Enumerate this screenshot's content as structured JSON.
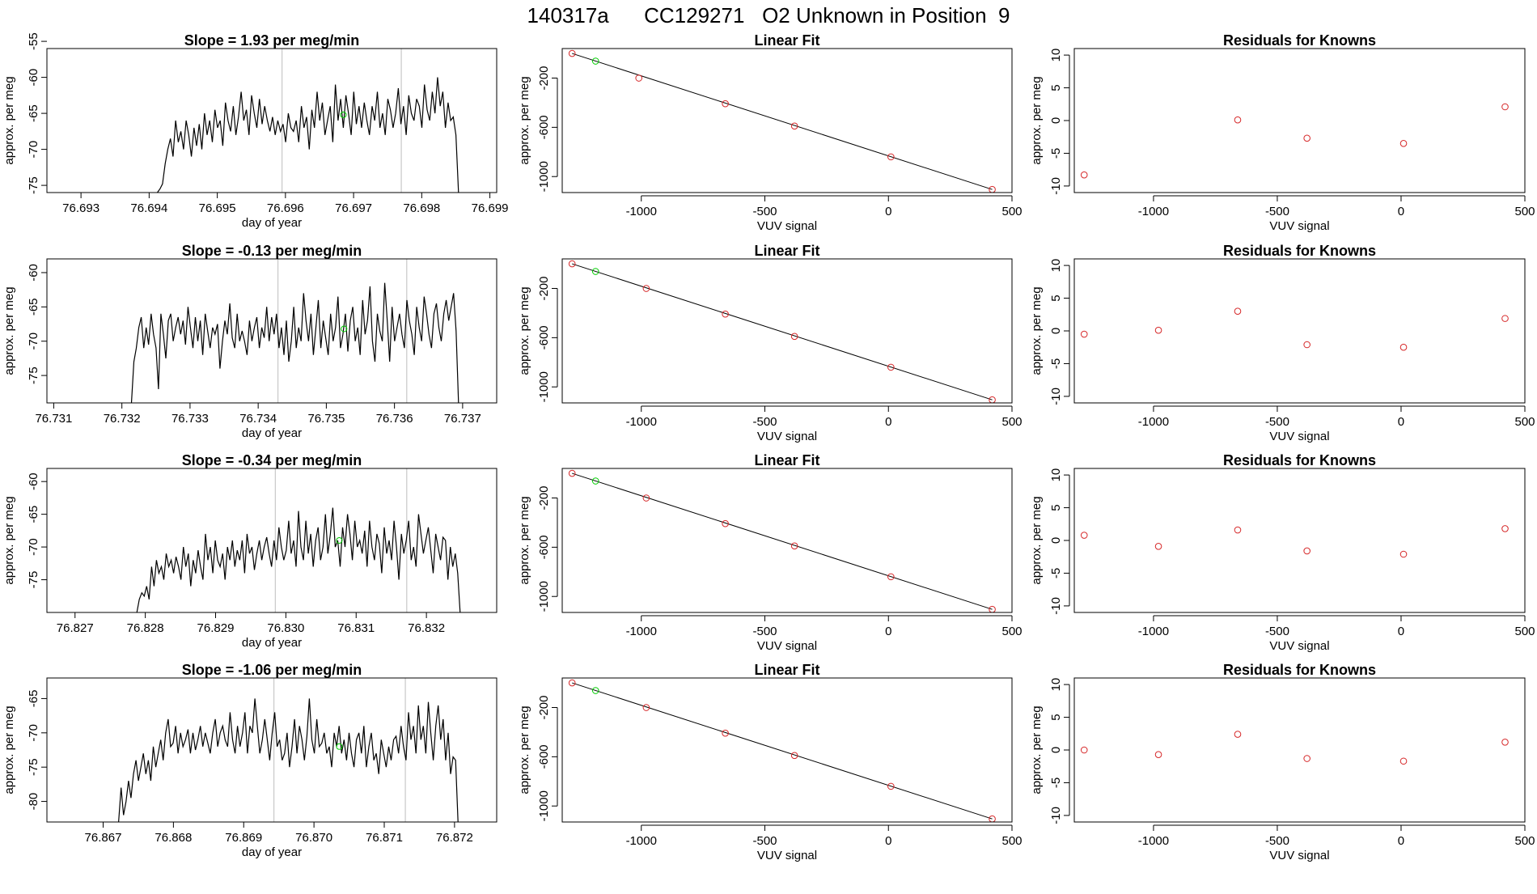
{
  "figure": {
    "title": "140317a      CC129271   O2 Unknown in Position  9"
  },
  "colors": {
    "trace": "#000000",
    "vline": "#c8c8c8",
    "known": "#d62728",
    "unknown": "#00cc00",
    "frame": "#000000"
  },
  "chart_data": [
    {
      "type": "line",
      "title": "Slope =  1.93  per meg/min",
      "xlabel": "day of year",
      "ylabel": "approx. per meg",
      "xlim": [
        76.6925,
        76.6991
      ],
      "ylim": [
        -76,
        -56
      ],
      "xticks": [
        "76.693",
        "76.694",
        "76.695",
        "76.696",
        "76.697",
        "76.698",
        "76.699"
      ],
      "yticks": [
        "-75",
        "-70",
        "-65",
        "-60",
        "-55"
      ],
      "vlines": [
        76.69595,
        76.6977
      ],
      "series": [
        {
          "x_start": 76.69412,
          "x_end": 76.69854,
          "y": [
            -76,
            -75.5,
            -74.8,
            -72,
            -70,
            -68.5,
            -71,
            -66,
            -69,
            -67.5,
            -70,
            -66,
            -68,
            -71,
            -67,
            -69.5,
            -66.5,
            -70,
            -65,
            -68,
            -66,
            -69,
            -64.5,
            -67,
            -66,
            -69.5,
            -63.5,
            -66,
            -67.5,
            -64,
            -68,
            -65.5,
            -62,
            -66,
            -64.5,
            -68,
            -62.5,
            -65,
            -67,
            -63,
            -66.5,
            -64,
            -66,
            -67.5,
            -65.5,
            -68,
            -66,
            -67.5,
            -66.5,
            -69,
            -65,
            -67,
            -67.5,
            -66,
            -69,
            -64,
            -67,
            -65.5,
            -70,
            -64.5,
            -67,
            -62,
            -66,
            -63.5,
            -68,
            -66,
            -64,
            -69,
            -61,
            -66,
            -63,
            -67,
            -62.5,
            -65,
            -68,
            -62,
            -66.5,
            -64,
            -67,
            -63.5,
            -66,
            -68,
            -64,
            -66,
            -62,
            -67,
            -65,
            -68,
            -63,
            -64.5,
            -67,
            -65,
            -61.5,
            -66.5,
            -64,
            -68,
            -62.5,
            -65,
            -66,
            -63,
            -64,
            -67,
            -61,
            -64.5,
            -66,
            -62,
            -65,
            -60,
            -64,
            -62,
            -67,
            -63.5,
            -66,
            -65.5,
            -68,
            -76
          ]
        }
      ],
      "markers": [
        {
          "x": 76.69685,
          "y": -65.2,
          "kind": "unknown"
        }
      ]
    },
    {
      "type": "scatter",
      "title": "Linear Fit",
      "xlabel": "VUV signal",
      "ylabel": "approx. per meg",
      "xlim": [
        -1320,
        500
      ],
      "ylim": [
        -1130,
        40
      ],
      "xticks": [
        "-1000",
        "-500",
        "0",
        "500"
      ],
      "yticks": [
        "-1000",
        "-600",
        "-200"
      ],
      "known": [
        [
          -1280,
          0
        ],
        [
          -1010,
          -200
        ],
        [
          -660,
          -408
        ],
        [
          -380,
          -590
        ],
        [
          10,
          -840
        ],
        [
          420,
          -1105
        ]
      ],
      "unknown": [
        [
          -1185,
          -62
        ]
      ],
      "fit": [
        [
          -1280,
          0
        ],
        [
          420,
          -1105
        ]
      ]
    },
    {
      "type": "scatter",
      "title": "Residuals for Knowns",
      "xlabel": "VUV signal",
      "ylabel": "approx. per meg",
      "xlim": [
        -1320,
        500
      ],
      "ylim": [
        -11,
        11
      ],
      "xticks": [
        "-1000",
        "-500",
        "0",
        "500"
      ],
      "yticks": [
        "-10",
        "-5",
        "0",
        "5",
        "10"
      ],
      "points": [
        [
          -1280,
          -8.3
        ],
        [
          -660,
          0.1
        ],
        [
          -380,
          -2.7
        ],
        [
          10,
          -3.5
        ],
        [
          420,
          2.1
        ]
      ]
    },
    {
      "type": "line",
      "title": "Slope =  -0.13  per meg/min",
      "xlabel": "day of year",
      "ylabel": "approx. per meg",
      "xlim": [
        76.7309,
        76.7375
      ],
      "ylim": [
        -79,
        -58
      ],
      "xticks": [
        "76.731",
        "76.732",
        "76.733",
        "76.734",
        "76.735",
        "76.736",
        "76.737"
      ],
      "yticks": [
        "-75",
        "-70",
        "-65",
        "-60"
      ],
      "vlines": [
        76.73429,
        76.73618
      ],
      "series": [
        {
          "x_start": 76.73214,
          "x_end": 76.73694,
          "y": [
            -79,
            -73,
            -71,
            -68,
            -66.5,
            -71,
            -68,
            -70.5,
            -66,
            -69,
            -71,
            -77,
            -66,
            -69,
            -72.5,
            -67,
            -66,
            -70,
            -68,
            -66.5,
            -69,
            -67,
            -70.5,
            -65,
            -68,
            -71,
            -66.5,
            -70,
            -67,
            -72,
            -66,
            -68.5,
            -71,
            -68,
            -69,
            -67.5,
            -74,
            -70,
            -67,
            -69,
            -64.5,
            -69.5,
            -71,
            -66,
            -70,
            -68.5,
            -70,
            -72,
            -67,
            -70,
            -68,
            -66.5,
            -71,
            -68,
            -69.5,
            -65,
            -70,
            -66.5,
            -69,
            -66,
            -71,
            -68,
            -72,
            -67,
            -73,
            -70,
            -65,
            -71,
            -68,
            -70,
            -63,
            -67,
            -70,
            -66,
            -72,
            -68,
            -64,
            -71,
            -67,
            -69.5,
            -72,
            -66,
            -70,
            -68,
            -63.5,
            -71,
            -69,
            -66,
            -71.5,
            -67,
            -65,
            -70,
            -68,
            -72,
            -64,
            -69,
            -67,
            -62,
            -70,
            -73,
            -66,
            -68.5,
            -70,
            -61.5,
            -67,
            -73,
            -65,
            -70,
            -68,
            -66,
            -69,
            -71,
            -64,
            -67,
            -69,
            -72,
            -65,
            -68,
            -70,
            -63.5,
            -66,
            -69,
            -71,
            -66,
            -64.5,
            -68,
            -70,
            -66,
            -64,
            -67,
            -65,
            -63,
            -68.5,
            -79
          ]
        }
      ],
      "markers": [
        {
          "x": 76.73526,
          "y": -68.2,
          "kind": "unknown"
        }
      ]
    },
    {
      "type": "scatter",
      "title": "Linear Fit",
      "xlabel": "VUV signal",
      "ylabel": "approx. per meg",
      "xlim": [
        -1320,
        500
      ],
      "ylim": [
        -1130,
        40
      ],
      "xticks": [
        "-1000",
        "-500",
        "0",
        "500"
      ],
      "yticks": [
        "-1000",
        "-600",
        "-200"
      ],
      "known": [
        [
          -1280,
          0
        ],
        [
          -980,
          -200
        ],
        [
          -660,
          -408
        ],
        [
          -380,
          -590
        ],
        [
          10,
          -840
        ],
        [
          420,
          -1105
        ]
      ],
      "unknown": [
        [
          -1185,
          -62
        ]
      ],
      "fit": [
        [
          -1280,
          0
        ],
        [
          420,
          -1105
        ]
      ]
    },
    {
      "type": "scatter",
      "title": "Residuals for Knowns",
      "xlabel": "VUV signal",
      "ylabel": "approx. per meg",
      "xlim": [
        -1320,
        500
      ],
      "ylim": [
        -11,
        11
      ],
      "xticks": [
        "-1000",
        "-500",
        "0",
        "500"
      ],
      "yticks": [
        "-10",
        "-5",
        "0",
        "5",
        "10"
      ],
      "points": [
        [
          -1280,
          -0.5
        ],
        [
          -980,
          0.1
        ],
        [
          -660,
          3.0
        ],
        [
          -380,
          -2.1
        ],
        [
          10,
          -2.5
        ],
        [
          420,
          1.9
        ]
      ]
    },
    {
      "type": "line",
      "title": "Slope =  -0.34  per meg/min",
      "xlabel": "day of year",
      "ylabel": "approx. per meg",
      "xlim": [
        76.8266,
        76.833
      ],
      "ylim": [
        -80,
        -58
      ],
      "xticks": [
        "76.827",
        "76.828",
        "76.829",
        "76.830",
        "76.831",
        "76.832"
      ],
      "yticks": [
        "-75",
        "-70",
        "-65",
        "-60"
      ],
      "vlines": [
        76.82985,
        76.83172
      ],
      "series": [
        {
          "x_start": 76.82788,
          "x_end": 76.83248,
          "y": [
            -80,
            -78,
            -77,
            -77.5,
            -76,
            -78,
            -73,
            -76,
            -72,
            -74,
            -73,
            -75,
            -71,
            -73,
            -72,
            -74,
            -71.5,
            -73,
            -75,
            -70,
            -73,
            -71,
            -76,
            -72,
            -74,
            -70.5,
            -73,
            -75,
            -68,
            -72,
            -70,
            -74,
            -69,
            -72,
            -73,
            -71,
            -75,
            -70,
            -72,
            -69,
            -73,
            -70.5,
            -72,
            -69,
            -74,
            -68,
            -71,
            -70,
            -73.5,
            -71,
            -69,
            -72,
            -70,
            -68.5,
            -71,
            -73,
            -69,
            -72,
            -67,
            -70,
            -72,
            -70.5,
            -66,
            -71,
            -69,
            -73,
            -64.5,
            -70,
            -72,
            -66,
            -71,
            -68,
            -73,
            -69,
            -67,
            -72,
            -70,
            -65,
            -71,
            -68,
            -64,
            -70,
            -69,
            -73,
            -67,
            -70,
            -65,
            -68,
            -72,
            -66,
            -70,
            -69,
            -71,
            -67.5,
            -73,
            -66,
            -70,
            -72,
            -68,
            -69.5,
            -74,
            -67,
            -71,
            -69,
            -72,
            -66,
            -70,
            -75,
            -68,
            -71,
            -69,
            -66,
            -72,
            -70,
            -73,
            -65,
            -68,
            -71,
            -69,
            -67,
            -70.5,
            -74,
            -68,
            -70,
            -72,
            -68.5,
            -69,
            -75,
            -70,
            -73,
            -71,
            -74,
            -80
          ]
        }
      ],
      "markers": [
        {
          "x": 76.83076,
          "y": -69.0,
          "kind": "unknown"
        }
      ]
    },
    {
      "type": "scatter",
      "title": "Linear Fit",
      "xlabel": "VUV signal",
      "ylabel": "approx. per meg",
      "xlim": [
        -1320,
        500
      ],
      "ylim": [
        -1130,
        40
      ],
      "xticks": [
        "-1000",
        "-500",
        "0",
        "500"
      ],
      "yticks": [
        "-1000",
        "-600",
        "-200"
      ],
      "known": [
        [
          -1280,
          0
        ],
        [
          -980,
          -200
        ],
        [
          -660,
          -408
        ],
        [
          -380,
          -590
        ],
        [
          10,
          -840
        ],
        [
          420,
          -1105
        ]
      ],
      "unknown": [
        [
          -1185,
          -62
        ]
      ],
      "fit": [
        [
          -1280,
          0
        ],
        [
          420,
          -1105
        ]
      ]
    },
    {
      "type": "scatter",
      "title": "Residuals for Knowns",
      "xlabel": "VUV signal",
      "ylabel": "approx. per meg",
      "xlim": [
        -1320,
        500
      ],
      "ylim": [
        -11,
        11
      ],
      "xticks": [
        "-1000",
        "-500",
        "0",
        "500"
      ],
      "yticks": [
        "-10",
        "-5",
        "0",
        "5",
        "10"
      ],
      "points": [
        [
          -1280,
          0.8
        ],
        [
          -980,
          -0.9
        ],
        [
          -660,
          1.6
        ],
        [
          -380,
          -1.6
        ],
        [
          10,
          -2.1
        ],
        [
          420,
          1.8
        ]
      ]
    },
    {
      "type": "line",
      "title": "Slope =  -1.06  per meg/min",
      "xlabel": "day of year",
      "ylabel": "approx. per meg",
      "xlim": [
        76.8662,
        76.8726
      ],
      "ylim": [
        -83,
        -62
      ],
      "xticks": [
        "76.867",
        "76.868",
        "76.869",
        "76.870",
        "76.871",
        "76.872"
      ],
      "yticks": [
        "-80",
        "-75",
        "-70",
        "-65"
      ],
      "vlines": [
        76.86943,
        76.8713
      ],
      "series": [
        {
          "x_start": 76.86722,
          "x_end": 76.87205,
          "y": [
            -83,
            -78,
            -82,
            -80,
            -77,
            -79.5,
            -76,
            -74,
            -77,
            -75,
            -73,
            -76,
            -74,
            -77,
            -72,
            -75,
            -73,
            -71,
            -74,
            -70,
            -68,
            -72,
            -71.5,
            -69,
            -73,
            -70,
            -72,
            -71,
            -69.5,
            -73,
            -70,
            -72.5,
            -71,
            -69,
            -72,
            -70,
            -71.5,
            -73,
            -70,
            -68,
            -72,
            -70,
            -69,
            -71,
            -72,
            -67,
            -71,
            -73,
            -69,
            -72,
            -70,
            -67,
            -73,
            -69,
            -70,
            -65,
            -69,
            -73,
            -71,
            -68,
            -71,
            -74,
            -70,
            -67,
            -72,
            -71,
            -74,
            -73,
            -70,
            -75,
            -72,
            -68,
            -73,
            -69,
            -71,
            -74,
            -70.5,
            -65,
            -71,
            -73,
            -68,
            -72,
            -71.5,
            -70,
            -73,
            -72,
            -75,
            -70,
            -72,
            -69,
            -73,
            -71,
            -74,
            -70,
            -73,
            -75,
            -71,
            -70,
            -73,
            -69,
            -75,
            -72,
            -70,
            -74,
            -73,
            -76,
            -71,
            -73,
            -75,
            -72,
            -74,
            -71,
            -70.5,
            -73,
            -69,
            -72,
            -74,
            -67,
            -71,
            -69,
            -73,
            -66,
            -71,
            -69,
            -73,
            -65.5,
            -70,
            -74,
            -69,
            -66,
            -71,
            -68,
            -74,
            -70,
            -76,
            -73.5,
            -74,
            -83
          ]
        }
      ],
      "markers": [
        {
          "x": 76.87036,
          "y": -72.0,
          "kind": "unknown"
        }
      ]
    },
    {
      "type": "scatter",
      "title": "Linear Fit",
      "xlabel": "VUV signal",
      "ylabel": "approx. per meg",
      "xlim": [
        -1320,
        500
      ],
      "ylim": [
        -1130,
        40
      ],
      "xticks": [
        "-1000",
        "-500",
        "0",
        "500"
      ],
      "yticks": [
        "-1000",
        "-600",
        "-200"
      ],
      "known": [
        [
          -1280,
          0
        ],
        [
          -980,
          -200
        ],
        [
          -660,
          -408
        ],
        [
          -380,
          -590
        ],
        [
          10,
          -840
        ],
        [
          420,
          -1105
        ]
      ],
      "unknown": [
        [
          -1185,
          -62
        ]
      ],
      "fit": [
        [
          -1280,
          0
        ],
        [
          420,
          -1105
        ]
      ]
    },
    {
      "type": "scatter",
      "title": "Residuals for Knowns",
      "xlabel": "VUV signal",
      "ylabel": "approx. per meg",
      "xlim": [
        -1320,
        500
      ],
      "ylim": [
        -11,
        11
      ],
      "xticks": [
        "-1000",
        "-500",
        "0",
        "500"
      ],
      "yticks": [
        "-10",
        "-5",
        "0",
        "5",
        "10"
      ],
      "points": [
        [
          -1280,
          0.0
        ],
        [
          -980,
          -0.7
        ],
        [
          -660,
          2.4
        ],
        [
          -380,
          -1.3
        ],
        [
          10,
          -1.7
        ],
        [
          420,
          1.2
        ]
      ]
    }
  ]
}
